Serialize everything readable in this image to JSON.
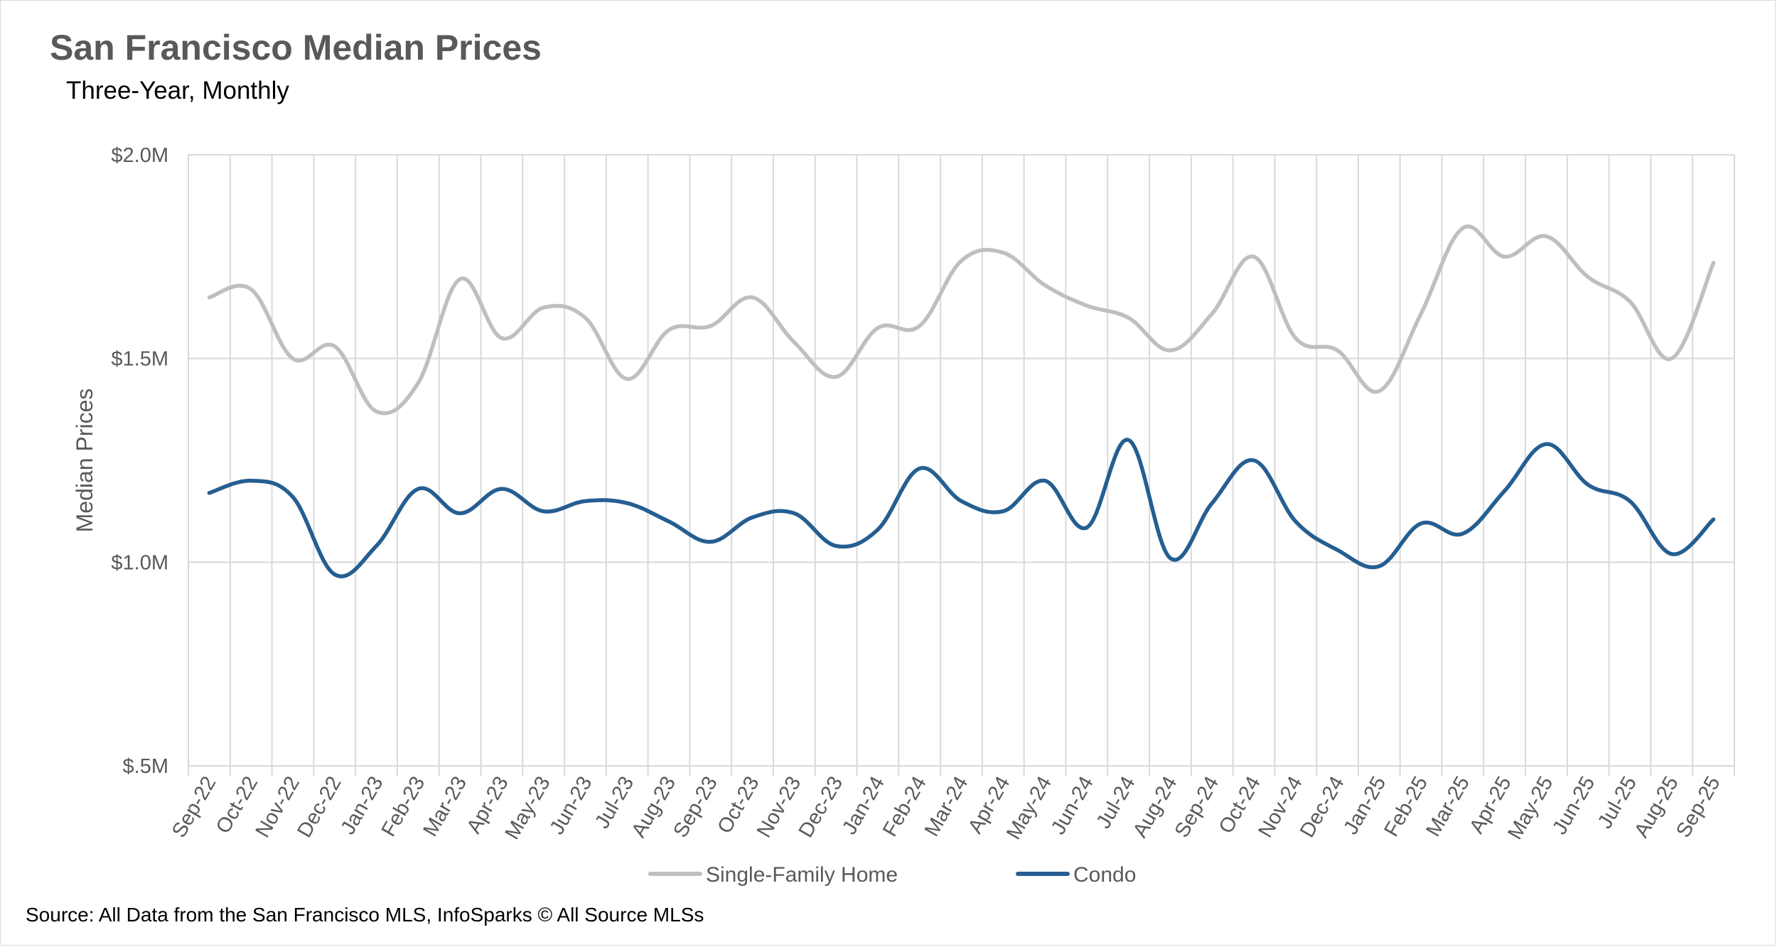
{
  "chart_data": {
    "type": "line",
    "title": "San Francisco Median Prices",
    "subtitle": "Three-Year, Monthly",
    "ylabel": "Median Prices",
    "xlabel": "",
    "ylim": [
      500000,
      2000000
    ],
    "yticks": [
      {
        "value": 2000000,
        "label": "$2.0M"
      },
      {
        "value": 1500000,
        "label": "$1.5M"
      },
      {
        "value": 1000000,
        "label": "$1.0M"
      },
      {
        "value": 500000,
        "label": "$.5M"
      }
    ],
    "grid": true,
    "legend_position": "bottom",
    "categories": [
      "Sep-22",
      "Oct-22",
      "Nov-22",
      "Dec-22",
      "Jan-23",
      "Feb-23",
      "Mar-23",
      "Apr-23",
      "May-23",
      "Jun-23",
      "Jul-23",
      "Aug-23",
      "Sep-23",
      "Oct-23",
      "Nov-23",
      "Dec-23",
      "Jan-24",
      "Feb-24",
      "Mar-24",
      "Apr-24",
      "May-24",
      "Jun-24",
      "Jul-24",
      "Aug-24",
      "Sep-24",
      "Oct-24",
      "Nov-24",
      "Dec-24",
      "Jan-25",
      "Feb-25",
      "Mar-25",
      "Apr-25",
      "May-25",
      "Jun-25",
      "Jul-25",
      "Aug-25",
      "Sep-25"
    ],
    "series": [
      {
        "name": "Single-Family Home",
        "color": "#bfbfbf",
        "values": [
          1650000,
          1670000,
          1500000,
          1530000,
          1370000,
          1440000,
          1695000,
          1550000,
          1625000,
          1600000,
          1450000,
          1570000,
          1580000,
          1650000,
          1540000,
          1455000,
          1575000,
          1580000,
          1740000,
          1760000,
          1680000,
          1630000,
          1600000,
          1520000,
          1610000,
          1750000,
          1550000,
          1520000,
          1420000,
          1610000,
          1820000,
          1750000,
          1800000,
          1700000,
          1640000,
          1500000,
          1735000
        ]
      },
      {
        "name": "Condo",
        "color": "#255e91",
        "values": [
          1170000,
          1200000,
          1160000,
          970000,
          1040000,
          1180000,
          1120000,
          1180000,
          1125000,
          1150000,
          1145000,
          1100000,
          1050000,
          1110000,
          1120000,
          1040000,
          1080000,
          1230000,
          1150000,
          1125000,
          1200000,
          1085000,
          1300000,
          1010000,
          1145000,
          1250000,
          1100000,
          1030000,
          990000,
          1095000,
          1070000,
          1175000,
          1290000,
          1190000,
          1150000,
          1020000,
          1105000
        ]
      }
    ],
    "source": "Source: All Data from the San Francisco MLS, InfoSparks © All Source MLSs"
  }
}
